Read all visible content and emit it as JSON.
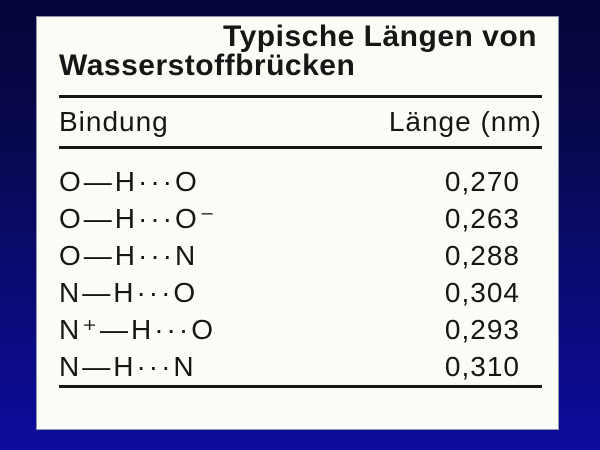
{
  "theme": {
    "background_top": "#06063a",
    "background_bottom": "#0d0d9e",
    "card_color": "#fcfcf7",
    "ink_color": "#161616"
  },
  "card": {
    "title_line1": "Typische Längen von",
    "title_line2": "Wasserstoffbrücken",
    "columns": [
      "Bindung",
      "Länge (nm)"
    ],
    "rows": [
      {
        "bond": "O—H···O",
        "length": "0,270"
      },
      {
        "bond": "O—H···O⁻",
        "length": "0,263"
      },
      {
        "bond": "O—H···N",
        "length": "0,288"
      },
      {
        "bond": "N—H···O",
        "length": "0,304"
      },
      {
        "bond": "N⁺—H···O",
        "length": "0,293"
      },
      {
        "bond": "N—H···N",
        "length": "0,310"
      }
    ]
  }
}
